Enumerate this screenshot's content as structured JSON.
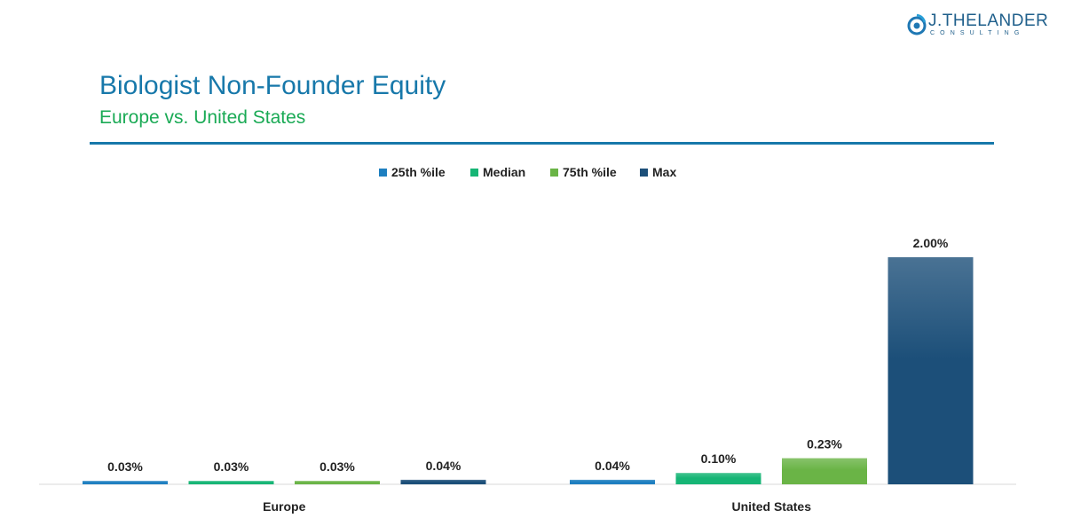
{
  "logo": {
    "name": "J.THELANDER",
    "tagline": "CONSULTING"
  },
  "header": {
    "title": "Biologist Non-Founder Equity",
    "subtitle": "Europe vs. United States"
  },
  "colors": {
    "title": "#1778aa",
    "subtitle": "#1aaa55",
    "rule": "#1778aa"
  },
  "chart_data": {
    "type": "bar",
    "categories": [
      "Europe",
      "United States"
    ],
    "series": [
      {
        "name": "25th %ile",
        "color": "#1e7fc0",
        "values": [
          0.03,
          0.04
        ],
        "labels": [
          "0.03%",
          "0.04%"
        ]
      },
      {
        "name": "Median",
        "color": "#16b575",
        "values": [
          0.03,
          0.1
        ],
        "labels": [
          "0.03%",
          "0.10%"
        ]
      },
      {
        "name": "75th %ile",
        "color": "#6ab446",
        "values": [
          0.03,
          0.23
        ],
        "labels": [
          "0.03%",
          "0.23%"
        ]
      },
      {
        "name": "Max",
        "color": "#1c4f79",
        "values": [
          0.04,
          2.0
        ],
        "labels": [
          "0.04%",
          "2.00%"
        ]
      }
    ],
    "ylim": [
      0,
      2.25
    ],
    "unit": "%",
    "legend": "top-center",
    "grid": false,
    "title": "",
    "xlabel": "",
    "ylabel": ""
  }
}
